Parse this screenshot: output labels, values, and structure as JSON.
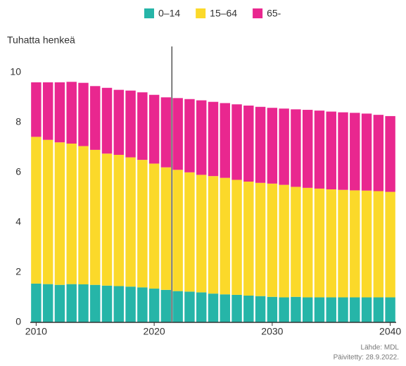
{
  "chart_data": {
    "type": "stacked_bar",
    "y_label": "Tuhatta henkeä",
    "source": "Lähde: MDL",
    "updated": "Päivitetty: 28.9.2022.",
    "x": [
      2010,
      2011,
      2012,
      2013,
      2014,
      2015,
      2016,
      2017,
      2018,
      2019,
      2020,
      2021,
      2022,
      2023,
      2024,
      2025,
      2026,
      2027,
      2028,
      2029,
      2030,
      2031,
      2032,
      2033,
      2034,
      2035,
      2036,
      2037,
      2038,
      2039,
      2040
    ],
    "series": [
      {
        "name": "0–14",
        "color": "#26b5a8",
        "values": [
          1.55,
          1.53,
          1.5,
          1.53,
          1.52,
          1.5,
          1.47,
          1.45,
          1.43,
          1.4,
          1.35,
          1.3,
          1.25,
          1.23,
          1.2,
          1.15,
          1.12,
          1.1,
          1.07,
          1.05,
          1.02,
          1.0,
          1.02,
          1.0,
          1.0,
          1.0,
          1.0,
          1.0,
          1.0,
          1.0,
          1.0
        ]
      },
      {
        "name": "15–64",
        "color": "#fbd92a",
        "values": [
          5.87,
          5.77,
          5.7,
          5.62,
          5.53,
          5.4,
          5.28,
          5.25,
          5.17,
          5.1,
          5.0,
          4.9,
          4.85,
          4.77,
          4.7,
          4.7,
          4.66,
          4.6,
          4.56,
          4.53,
          4.53,
          4.5,
          4.4,
          4.38,
          4.35,
          4.32,
          4.3,
          4.28,
          4.27,
          4.25,
          4.22
        ]
      },
      {
        "name": "65-",
        "color": "#e9278f",
        "values": [
          2.18,
          2.3,
          2.4,
          2.47,
          2.53,
          2.55,
          2.63,
          2.6,
          2.67,
          2.7,
          2.75,
          2.8,
          2.87,
          2.93,
          2.98,
          2.97,
          2.99,
          3.02,
          3.04,
          3.04,
          3.03,
          3.05,
          3.1,
          3.12,
          3.12,
          3.11,
          3.1,
          3.1,
          3.08,
          3.05,
          3.03
        ]
      }
    ],
    "xlim": [
      2009.5,
      2040.5
    ],
    "xticks": [
      2010,
      2020,
      2030,
      2040
    ],
    "ylim": [
      0,
      10.5
    ],
    "yticks": [
      0,
      2,
      4,
      6,
      8,
      10
    ],
    "marker_x": 2021.5
  }
}
